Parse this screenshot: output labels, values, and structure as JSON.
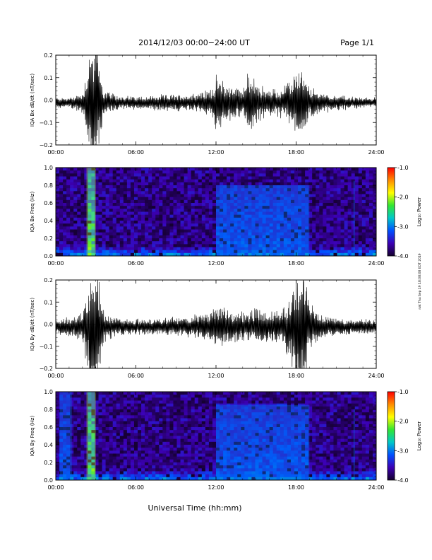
{
  "header": {
    "title": "2014/12/03  00:00−24:00 UT",
    "page": "Page 1/1"
  },
  "footer": {
    "xlabel": "Universal Time (hh:mm)",
    "side_note": "nat Thu Sep 19 18:08:08 EDT 2019"
  },
  "colorbar": {
    "label": "Log₁₀ Power",
    "ticks": [
      "-1.0",
      "-2.0",
      "-3.0",
      "-4.0"
    ],
    "colors": [
      "#ff0000",
      "#ff8c00",
      "#ffff00",
      "#32e632",
      "#00c8c8",
      "#0050ff",
      "#3c00b4",
      "#14002d"
    ]
  },
  "chart_data": [
    {
      "type": "line",
      "ylabel": "IQA Bx dB/dt (nT/sec)",
      "xlim": [
        0,
        24
      ],
      "ylim": [
        -0.2,
        0.2
      ],
      "x_tick_labels": [
        "00:00",
        "06:00",
        "12:00",
        "18:00",
        "24:00"
      ],
      "y_tick_labels": [
        "0.2",
        "0.1",
        "0.0",
        "−0.1",
        "−0.2"
      ],
      "series": [
        {
          "envelope_hours": [
            0,
            1,
            2,
            2.3,
            2.6,
            3.0,
            3.3,
            3.6,
            4.5,
            6,
            8,
            10,
            11.5,
            12,
            12.5,
            13,
            14,
            14.5,
            15,
            16,
            17,
            17.5,
            18,
            18.5,
            19,
            20,
            21,
            22,
            23,
            24
          ],
          "amplitude_nT_per_s": [
            0.02,
            0.02,
            0.04,
            0.12,
            0.25,
            0.25,
            0.15,
            0.05,
            0.03,
            0.025,
            0.03,
            0.035,
            0.05,
            0.1,
            0.09,
            0.07,
            0.06,
            0.12,
            0.08,
            0.05,
            0.06,
            0.08,
            0.14,
            0.12,
            0.06,
            0.04,
            0.03,
            0.025,
            0.02,
            0.02
          ]
        }
      ]
    },
    {
      "type": "heatmap",
      "ylabel": "IQA Bx Freq (Hz)",
      "xlim": [
        0,
        24
      ],
      "ylim": [
        0,
        1.0
      ],
      "x_tick_labels": [
        "00:00",
        "06:00",
        "12:00",
        "18:00",
        "24:00"
      ],
      "y_tick_labels": [
        "1.0",
        "0.8",
        "0.6",
        "0.4",
        "0.2",
        "0.0"
      ],
      "color_range_log10_power": [
        -4.0,
        -1.0
      ],
      "features": [
        {
          "hour_start": 2.3,
          "hour_end": 3.0,
          "max_freq_hz": 1.0,
          "log10_power": -2.0
        },
        {
          "hour_start": 12.0,
          "hour_end": 19.0,
          "max_freq_hz": 0.8,
          "log10_power": -3.0
        },
        {
          "hour_start": 22.3,
          "hour_end": 22.4,
          "max_freq_hz": 0.85,
          "log10_power": -3.0
        }
      ]
    },
    {
      "type": "line",
      "ylabel": "IQA By dB/dt (nT/sec)",
      "xlim": [
        0,
        24
      ],
      "ylim": [
        -0.2,
        0.2
      ],
      "x_tick_labels": [
        "00:00",
        "06:00",
        "12:00",
        "18:00",
        "24:00"
      ],
      "y_tick_labels": [
        "0.2",
        "0.1",
        "0.0",
        "−0.1",
        "−0.2"
      ],
      "series": [
        {
          "envelope_hours": [
            0,
            1,
            2,
            2.3,
            2.6,
            3.0,
            3.3,
            3.6,
            4.5,
            6,
            8,
            10,
            11.5,
            12,
            12.5,
            13,
            14,
            15,
            16,
            17,
            17.5,
            18,
            18.5,
            19,
            20,
            21,
            22,
            23,
            24
          ],
          "amplitude_nT_per_s": [
            0.03,
            0.04,
            0.05,
            0.15,
            0.3,
            0.3,
            0.15,
            0.06,
            0.04,
            0.03,
            0.035,
            0.04,
            0.06,
            0.09,
            0.08,
            0.07,
            0.06,
            0.07,
            0.06,
            0.07,
            0.12,
            0.25,
            0.25,
            0.1,
            0.05,
            0.035,
            0.03,
            0.03,
            0.03
          ]
        }
      ]
    },
    {
      "type": "heatmap",
      "ylabel": "IQA By Freq (Hz)",
      "xlim": [
        0,
        24
      ],
      "ylim": [
        0,
        1.0
      ],
      "x_tick_labels": [
        "00:00",
        "06:00",
        "12:00",
        "18:00",
        "24:00"
      ],
      "y_tick_labels": [
        "1.0",
        "0.8",
        "0.6",
        "0.4",
        "0.2",
        "0.0"
      ],
      "color_range_log10_power": [
        -4.0,
        -1.0
      ],
      "features": [
        {
          "hour_start": 0.3,
          "hour_end": 1.2,
          "max_freq_hz": 1.0,
          "log10_power": -3.0
        },
        {
          "hour_start": 2.3,
          "hour_end": 3.0,
          "max_freq_hz": 1.0,
          "log10_power": -2.0
        },
        {
          "hour_start": 12.0,
          "hour_end": 19.0,
          "max_freq_hz": 0.85,
          "log10_power": -3.0
        },
        {
          "hour_start": 22.3,
          "hour_end": 22.4,
          "max_freq_hz": 0.8,
          "log10_power": -3.0
        }
      ]
    }
  ]
}
